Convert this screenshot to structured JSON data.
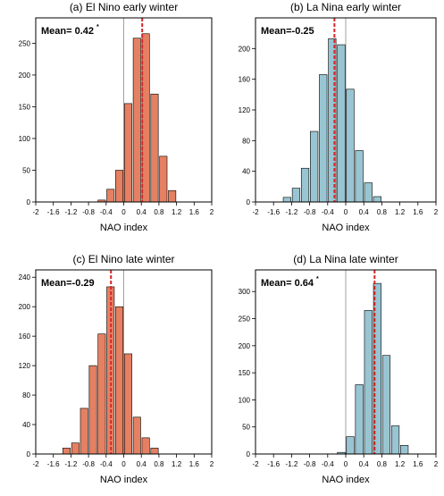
{
  "colors": {
    "el_nino_bar": "#e58062",
    "la_nina_bar": "#99c5d2",
    "bar_outline": "#000000",
    "mean_line": "#d62728",
    "zero_line": "#888888"
  },
  "chart_data": [
    {
      "type": "bar",
      "title": "(a) El Nino early winter",
      "xlabel": "NAO index",
      "ylabel": "",
      "xlim": [
        -2,
        2
      ],
      "ylim": [
        0,
        290
      ],
      "x_tick_labels": [
        "-2",
        "-1.6",
        "-1.2",
        "-0.8",
        "-0.4",
        "0",
        "0.4",
        "0.8",
        "1.2",
        "1.6",
        "2"
      ],
      "y_ticks": [
        0,
        50,
        100,
        150,
        200,
        250
      ],
      "y_tick_labels": [
        "0",
        "50",
        "100",
        "150",
        "200",
        "250"
      ],
      "bin_width": 0.1,
      "bin_centers": [
        -0.5,
        -0.3,
        -0.1,
        0.1,
        0.3,
        0.5,
        0.7,
        0.9,
        1.1
      ],
      "values": [
        3,
        20,
        50,
        155,
        258,
        265,
        170,
        72,
        18
      ],
      "mean": 0.42,
      "mean_label": "Mean= 0.42",
      "mean_marker": "*",
      "color": "#e58062"
    },
    {
      "type": "bar",
      "title": "(b) La Nina early winter",
      "xlabel": "NAO index",
      "ylabel": "",
      "xlim": [
        -2,
        2
      ],
      "ylim": [
        0,
        240
      ],
      "x_tick_labels": [
        "-2",
        "-1.6",
        "-1.2",
        "-0.8",
        "-0.4",
        "0",
        "0.4",
        "0.8",
        "1.2",
        "1.6",
        "2"
      ],
      "y_ticks": [
        0,
        40,
        80,
        120,
        160,
        200
      ],
      "y_tick_labels": [
        "0",
        "40",
        "80",
        "120",
        "160",
        "200"
      ],
      "bin_width": 0.1,
      "bin_centers": [
        -1.3,
        -1.1,
        -0.9,
        -0.7,
        -0.5,
        -0.3,
        -0.1,
        0.1,
        0.3,
        0.5,
        0.7
      ],
      "values": [
        6,
        18,
        44,
        92,
        166,
        213,
        205,
        147,
        67,
        25,
        7
      ],
      "mean": -0.25,
      "mean_label": "Mean=-0.25",
      "mean_marker": "",
      "color": "#99c5d2"
    },
    {
      "type": "bar",
      "title": "(c) El Nino late winter",
      "xlabel": "NAO index",
      "ylabel": "",
      "xlim": [
        -2,
        2
      ],
      "ylim": [
        0,
        250
      ],
      "x_tick_labels": [
        "-2",
        "-1.6",
        "-1.2",
        "-0.8",
        "-0.4",
        "0",
        "0.4",
        "0.8",
        "1.2",
        "1.6",
        "2"
      ],
      "y_ticks": [
        0,
        40,
        80,
        120,
        160,
        200,
        240
      ],
      "y_tick_labels": [
        "0",
        "40",
        "80",
        "120",
        "160",
        "200",
        "240"
      ],
      "bin_width": 0.1,
      "bin_centers": [
        -1.3,
        -1.1,
        -0.9,
        -0.7,
        -0.5,
        -0.3,
        -0.1,
        0.1,
        0.3,
        0.5,
        0.7
      ],
      "values": [
        8,
        15,
        62,
        120,
        163,
        227,
        200,
        136,
        50,
        22,
        8
      ],
      "mean": -0.29,
      "mean_label": "Mean=-0.29",
      "mean_marker": "",
      "color": "#e58062"
    },
    {
      "type": "bar",
      "title": "(d) La Nina late winter",
      "xlabel": "NAO index",
      "ylabel": "",
      "xlim": [
        -2,
        2
      ],
      "ylim": [
        0,
        340
      ],
      "x_tick_labels": [
        "-2",
        "-1.6",
        "-1.2",
        "-0.8",
        "-0.4",
        "0",
        "0.4",
        "0.8",
        "1.2",
        "1.6",
        "2"
      ],
      "y_ticks": [
        0,
        50,
        100,
        150,
        200,
        250,
        300
      ],
      "y_tick_labels": [
        "0",
        "50",
        "100",
        "150",
        "200",
        "250",
        "300"
      ],
      "bin_width": 0.1,
      "bin_centers": [
        -0.1,
        0.1,
        0.3,
        0.5,
        0.7,
        0.9,
        1.1,
        1.3
      ],
      "values": [
        3,
        32,
        128,
        265,
        315,
        182,
        52,
        16
      ],
      "mean": 0.64,
      "mean_label": "Mean= 0.64",
      "mean_marker": "*",
      "color": "#99c5d2"
    }
  ]
}
